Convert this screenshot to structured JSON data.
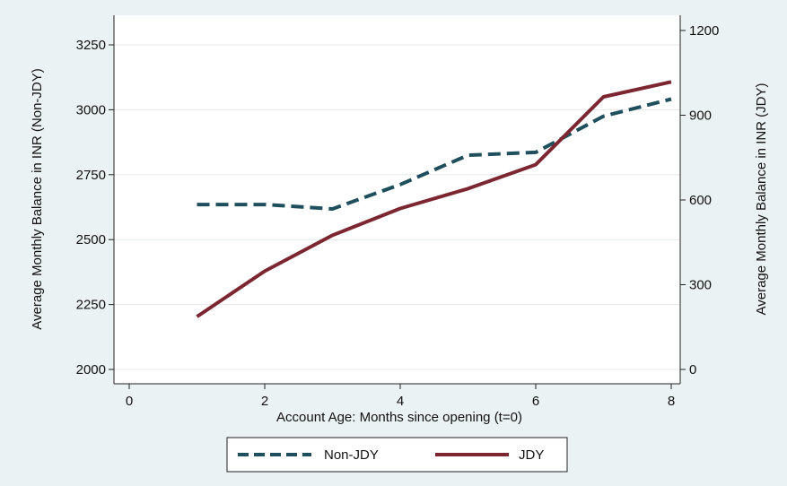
{
  "chart_data": {
    "type": "line",
    "title": "",
    "xlabel": "Account Age: Months since opening (t=0)",
    "ylabel_left": "Average Monthly Balance in INR (Non-JDY)",
    "ylabel_right": "Average Monthly Balance in INR (JDY)",
    "xlim": [
      0,
      8
    ],
    "ylim_left": [
      2000,
      3250
    ],
    "ylim_right": [
      0,
      1200
    ],
    "x_ticks": [
      "0",
      "2",
      "4",
      "6",
      "8"
    ],
    "y_left_ticks": [
      "2000",
      "2250",
      "2500",
      "2750",
      "3000",
      "3250"
    ],
    "y_right_ticks": [
      "0",
      "300",
      "600",
      "900",
      "1200"
    ],
    "grid": "horizontal",
    "legend_position": "bottom",
    "series": [
      {
        "name": "Non-JDY",
        "axis": "left",
        "style": "dashed",
        "color": "#1f4e5c",
        "x": [
          1,
          2,
          3,
          4,
          5,
          6,
          7,
          8
        ],
        "y": [
          2635,
          2635,
          2618,
          2712,
          2825,
          2836,
          2975,
          3041
        ]
      },
      {
        "name": "JDY",
        "axis": "right",
        "style": "solid",
        "color": "#7b2630",
        "x": [
          1,
          2,
          3,
          4,
          5,
          6,
          7,
          8
        ],
        "y": [
          187,
          348,
          475,
          570,
          640,
          725,
          965,
          1018
        ]
      }
    ]
  }
}
